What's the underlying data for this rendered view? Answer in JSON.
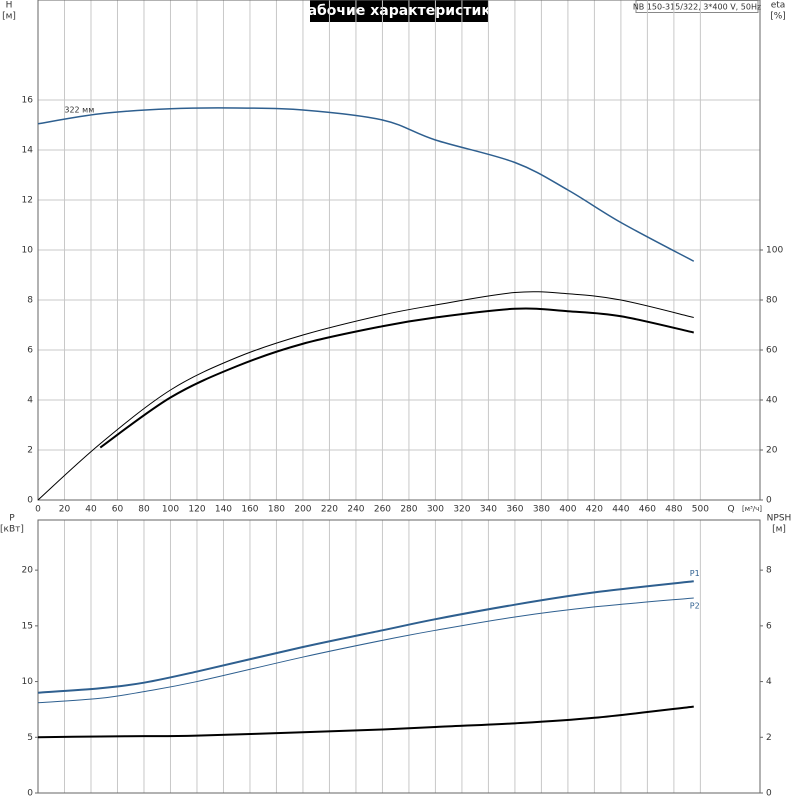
{
  "chart_data": [
    {
      "type": "line",
      "title": "Рабочие характеристики",
      "annotation": "NB 150-315/322, 3*400 V, 50Hz",
      "y_label": "H",
      "y_unit": "[м]",
      "y2_label": "eta",
      "y2_unit": "[%]",
      "x_label": "Q",
      "x_unit": "[м³/ч]",
      "x": [
        0,
        47,
        100,
        150,
        200,
        260,
        300,
        360,
        400,
        440,
        495
      ],
      "series": [
        {
          "name": "322 мм",
          "color": "#2e5f8f",
          "values": [
            15.05,
            15.45,
            15.65,
            15.68,
            15.6,
            15.2,
            14.4,
            13.5,
            12.4,
            11.1,
            9.55
          ]
        },
        {
          "color": "#000000",
          "axis": "y2",
          "values": [
            0,
            22.5,
            44,
            57,
            66,
            74,
            78,
            83,
            82.5,
            80,
            73
          ]
        },
        {
          "color": "#000000",
          "axis": "y2",
          "values": [
            null,
            21,
            41,
            53.5,
            62.5,
            69.5,
            73,
            76.5,
            75.5,
            73.5,
            67
          ]
        }
      ],
      "xlim": [
        0,
        545
      ],
      "xticks": [
        0,
        20,
        40,
        60,
        80,
        100,
        120,
        140,
        160,
        180,
        200,
        220,
        240,
        260,
        280,
        300,
        320,
        340,
        360,
        380,
        400,
        420,
        440,
        460,
        480,
        500
      ],
      "ylim": [
        0,
        20
      ],
      "yticks": [
        0,
        2,
        4,
        6,
        8,
        10,
        12,
        14,
        16
      ],
      "y2lim": [
        0,
        200
      ],
      "y2ticks": [
        0,
        20,
        40,
        60,
        80,
        100
      ],
      "grid": "both"
    },
    {
      "type": "line",
      "y_label": "P",
      "y_unit": "[кВт]",
      "y2_label": "NPSH",
      "y2_unit": "[м]",
      "x": [
        0,
        47,
        80,
        120,
        200,
        260,
        300,
        360,
        420,
        495
      ],
      "series": [
        {
          "name": "P1",
          "color": "#2e5f8f",
          "values": [
            9.0,
            9.4,
            9.9,
            10.9,
            13.1,
            14.6,
            15.6,
            16.9,
            18.0,
            19.0
          ]
        },
        {
          "name": "P2",
          "color": "#2e5f8f",
          "values": [
            8.1,
            8.5,
            9.1,
            10.0,
            12.2,
            13.7,
            14.6,
            15.8,
            16.7,
            17.5
          ]
        },
        {
          "color": "#000000",
          "axis": "y2",
          "values": [
            2.0,
            2.03,
            2.04,
            2.06,
            2.18,
            2.28,
            2.37,
            2.5,
            2.7,
            3.1
          ]
        }
      ],
      "xlim": [
        0,
        545
      ],
      "ylim": [
        0,
        24.5
      ],
      "yticks": [
        0,
        5,
        10,
        15,
        20
      ],
      "y2lim": [
        0,
        9.8
      ],
      "y2ticks": [
        0,
        2,
        4,
        6,
        8
      ],
      "grid": "x"
    }
  ]
}
